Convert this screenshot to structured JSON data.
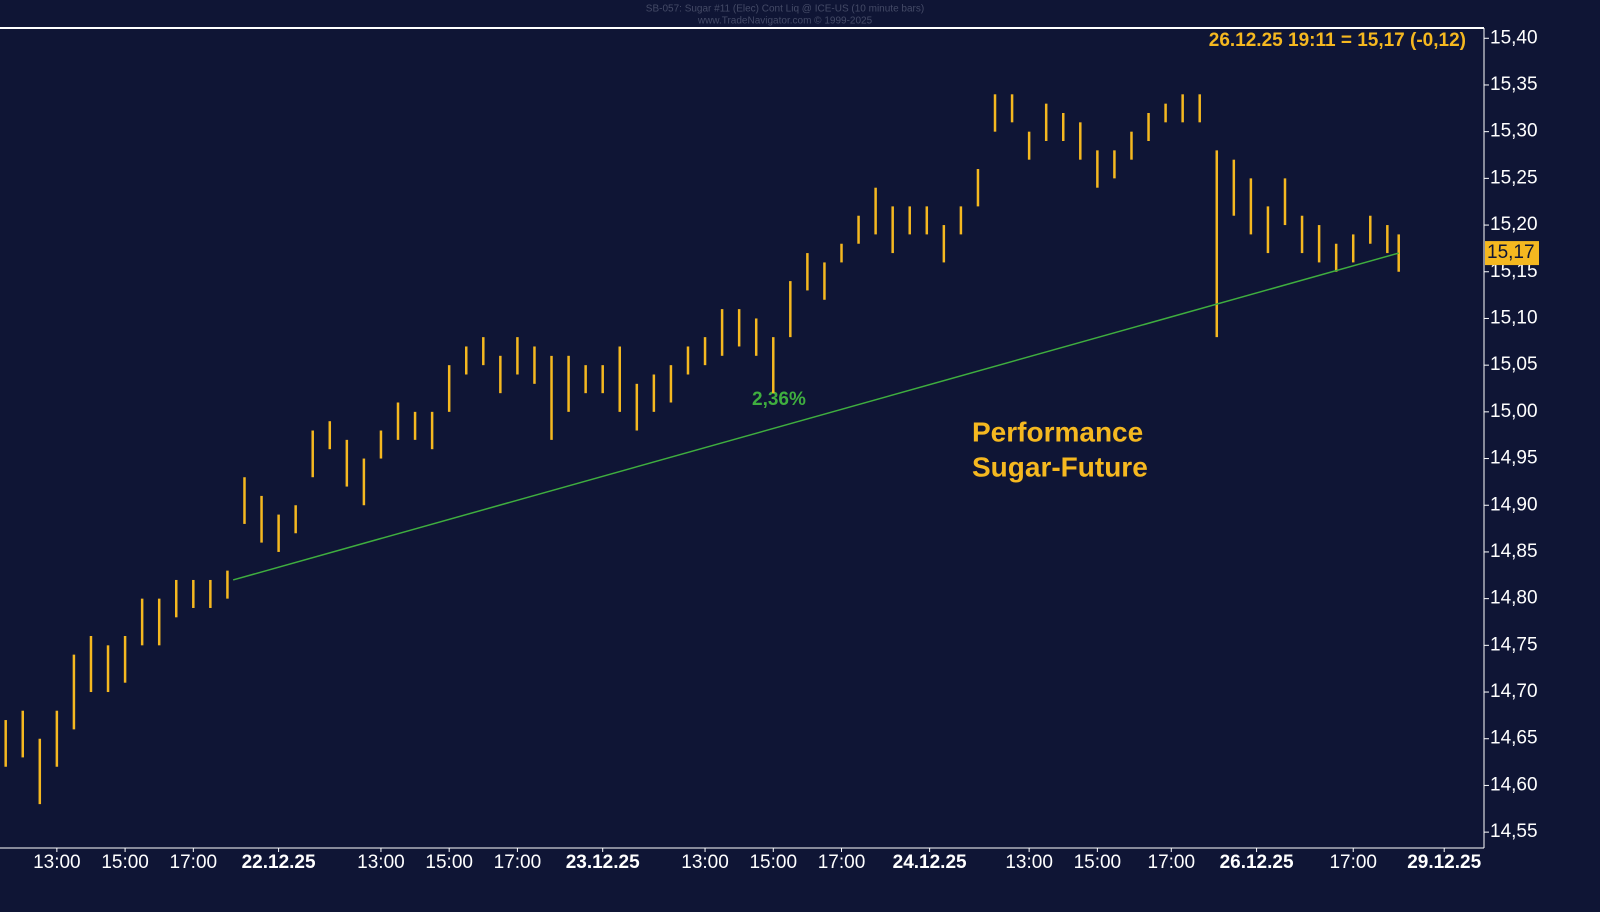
{
  "chart_data": {
    "type": "range-bar",
    "title": "SB-057: Sugar #11 (Elec) Cont Liq @ ICE-US (10 minute bars)",
    "subtitle": "www.TradeNavigator.com © 1999-2025",
    "header": "26.12.25 19:11 = 15,17 (-0,12)",
    "annotation": [
      "Performance",
      "Sugar-Future"
    ],
    "trend_label": "2,36%",
    "last": {
      "value": 15.17,
      "label": "15,17"
    },
    "color": "#f5b820",
    "trend_color": "#3fae3f",
    "background": "#0f1535",
    "x": [
      1,
      4,
      7,
      10,
      13,
      16,
      19,
      22,
      25,
      28,
      31,
      34,
      37,
      40,
      43,
      46,
      49,
      52,
      55,
      58,
      61,
      64,
      67,
      70,
      73,
      76,
      79,
      82,
      85,
      88,
      91,
      94,
      97,
      100,
      103,
      106,
      109,
      112,
      115,
      118,
      121,
      124,
      127,
      130,
      133,
      136,
      139,
      142,
      145,
      148,
      151,
      154,
      157,
      160,
      163,
      166,
      169,
      172,
      175,
      178,
      181,
      184,
      187,
      190,
      193,
      196,
      199,
      202,
      205,
      208,
      211,
      214,
      217,
      220,
      223,
      226,
      229,
      232,
      235,
      238,
      241,
      244,
      246
    ],
    "high": [
      14.67,
      14.68,
      14.65,
      14.68,
      14.74,
      14.76,
      14.75,
      14.76,
      14.8,
      14.8,
      14.82,
      14.82,
      14.82,
      14.83,
      14.93,
      14.91,
      14.89,
      14.9,
      14.98,
      14.99,
      14.97,
      14.95,
      14.98,
      15.01,
      15.0,
      15.0,
      15.05,
      15.07,
      15.08,
      15.06,
      15.08,
      15.07,
      15.06,
      15.06,
      15.05,
      15.05,
      15.07,
      15.03,
      15.04,
      15.05,
      15.07,
      15.08,
      15.11,
      15.11,
      15.1,
      15.08,
      15.14,
      15.17,
      15.16,
      15.18,
      15.21,
      15.24,
      15.22,
      15.22,
      15.22,
      15.2,
      15.22,
      15.26,
      15.34,
      15.34,
      15.3,
      15.33,
      15.32,
      15.31,
      15.28,
      15.28,
      15.3,
      15.32,
      15.33,
      15.34,
      15.34,
      15.28,
      15.27,
      15.25,
      15.22,
      15.25,
      15.21,
      15.2,
      15.18,
      15.19,
      15.21,
      15.2,
      15.19
    ],
    "low": [
      14.62,
      14.63,
      14.58,
      14.62,
      14.66,
      14.7,
      14.7,
      14.71,
      14.75,
      14.75,
      14.78,
      14.79,
      14.79,
      14.8,
      14.88,
      14.86,
      14.85,
      14.87,
      14.93,
      14.96,
      14.92,
      14.9,
      14.95,
      14.97,
      14.97,
      14.96,
      15.0,
      15.04,
      15.05,
      15.02,
      15.04,
      15.03,
      14.97,
      15.0,
      15.02,
      15.02,
      15.0,
      14.98,
      15.0,
      15.01,
      15.04,
      15.05,
      15.06,
      15.07,
      15.06,
      15.02,
      15.08,
      15.13,
      15.12,
      15.16,
      15.18,
      15.19,
      15.17,
      15.19,
      15.19,
      15.16,
      15.19,
      15.22,
      15.3,
      15.31,
      15.27,
      15.29,
      15.29,
      15.27,
      15.24,
      15.25,
      15.27,
      15.29,
      15.31,
      15.31,
      15.31,
      15.08,
      15.21,
      15.19,
      15.17,
      15.2,
      15.17,
      15.16,
      15.15,
      15.16,
      15.18,
      15.17,
      15.15
    ],
    "trendline": {
      "x": [
        41,
        246
      ],
      "values": [
        14.82,
        15.17
      ]
    },
    "xlim": [
      0,
      261
    ],
    "ylim": [
      14.533,
      15.411
    ],
    "xticks": [
      {
        "value": 10,
        "label": "13:00"
      },
      {
        "value": 22,
        "label": "15:00"
      },
      {
        "value": 34,
        "label": "17:00"
      },
      {
        "value": 49,
        "label": "22.12.25"
      },
      {
        "value": 67,
        "label": "13:00"
      },
      {
        "value": 79,
        "label": "15:00"
      },
      {
        "value": 91,
        "label": "17:00"
      },
      {
        "value": 106,
        "label": "23.12.25"
      },
      {
        "value": 124,
        "label": "13:00"
      },
      {
        "value": 136,
        "label": "15:00"
      },
      {
        "value": 148,
        "label": "17:00"
      },
      {
        "value": 163.5,
        "label": "24.12.25"
      },
      {
        "value": 181,
        "label": "13:00"
      },
      {
        "value": 193,
        "label": "15:00"
      },
      {
        "value": 206,
        "label": "17:00"
      },
      {
        "value": 221,
        "label": "26.12.25"
      },
      {
        "value": 238,
        "label": "17:00"
      },
      {
        "value": 254,
        "label": "29.12.25"
      }
    ],
    "yticks": [
      {
        "value": 14.55,
        "label": "14,55"
      },
      {
        "value": 14.6,
        "label": "14,60"
      },
      {
        "value": 14.65,
        "label": "14,65"
      },
      {
        "value": 14.7,
        "label": "14,70"
      },
      {
        "value": 14.75,
        "label": "14,75"
      },
      {
        "value": 14.8,
        "label": "14,80"
      },
      {
        "value": 14.85,
        "label": "14,85"
      },
      {
        "value": 14.9,
        "label": "14,90"
      },
      {
        "value": 14.95,
        "label": "14,95"
      },
      {
        "value": 15.0,
        "label": "15,00"
      },
      {
        "value": 15.05,
        "label": "15,05"
      },
      {
        "value": 15.1,
        "label": "15,10"
      },
      {
        "value": 15.15,
        "label": "15,15"
      },
      {
        "value": 15.2,
        "label": "15,20"
      },
      {
        "value": 15.25,
        "label": "15,25"
      },
      {
        "value": 15.3,
        "label": "15,30"
      },
      {
        "value": 15.35,
        "label": "15,35"
      },
      {
        "value": 15.4,
        "label": "15,40"
      }
    ]
  }
}
